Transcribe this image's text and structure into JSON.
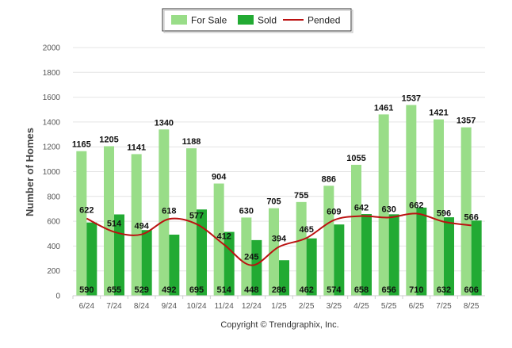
{
  "chart_data": {
    "type": "bar",
    "categories": [
      "6/24",
      "7/24",
      "8/24",
      "9/24",
      "10/24",
      "11/24",
      "12/24",
      "1/25",
      "2/25",
      "3/25",
      "4/25",
      "5/25",
      "6/25",
      "7/25",
      "8/25"
    ],
    "series": [
      {
        "name": "For Sale",
        "type": "bar",
        "color": "#99dd88",
        "values": [
          1165,
          1205,
          1141,
          1340,
          1188,
          904,
          630,
          705,
          755,
          886,
          1055,
          1461,
          1537,
          1421,
          1357
        ]
      },
      {
        "name": "Sold",
        "type": "bar",
        "color": "#22aa33",
        "values": [
          590,
          655,
          529,
          492,
          695,
          514,
          448,
          286,
          462,
          574,
          658,
          656,
          710,
          632,
          606
        ]
      },
      {
        "name": "Pended",
        "type": "line",
        "color": "#bb1111",
        "values": [
          622,
          514,
          494,
          618,
          577,
          412,
          245,
          394,
          465,
          609,
          642,
          630,
          662,
          596,
          566
        ]
      }
    ],
    "ylabel": "Number of Homes",
    "xlabel": "",
    "ylim": [
      0,
      2000
    ],
    "yticks": [
      0,
      200,
      400,
      600,
      800,
      1000,
      1200,
      1400,
      1600,
      1800,
      2000
    ],
    "grid": true,
    "legend_position": "top-center",
    "copyright": "Copyright © Trendgraphix, Inc."
  }
}
